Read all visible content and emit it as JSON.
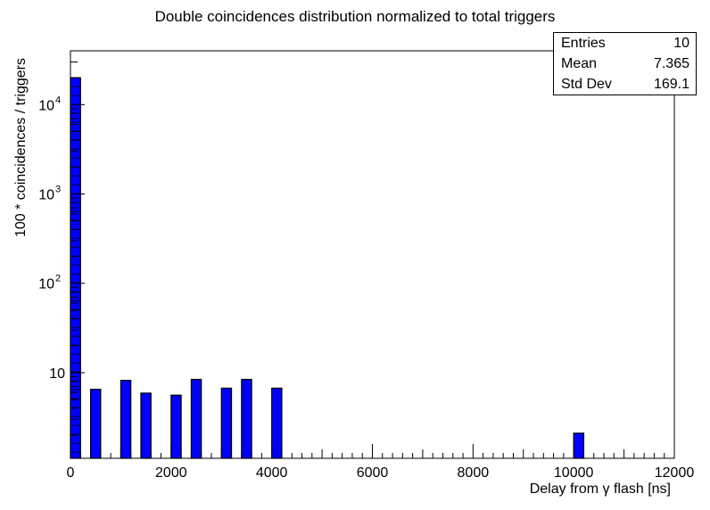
{
  "title": "Double coincidences distribution normalized to total triggers",
  "stats": {
    "rows": [
      {
        "label": "Entries",
        "value": "10"
      },
      {
        "label": "Mean",
        "value": "7.365"
      },
      {
        "label": "Std Dev",
        "value": "169.1"
      }
    ]
  },
  "colors": {
    "bar_fill": "#0000ff",
    "bar_edge": "#000000",
    "axis": "#000000"
  },
  "chart_data": {
    "type": "bar",
    "title": "Double coincidences distribution normalized to total triggers",
    "xlabel": "Delay from  γ flash [ns]",
    "ylabel": "100 * coincidences / triggers",
    "xlim": [
      0,
      12000
    ],
    "ylim": [
      1.1,
      40000
    ],
    "yscale": "log",
    "grid": false,
    "bin_width": 200,
    "x_ticks": [
      {
        "value": 0,
        "label": "0"
      },
      {
        "value": 2000,
        "label": "2000"
      },
      {
        "value": 4000,
        "label": "4000"
      },
      {
        "value": 6000,
        "label": "6000"
      },
      {
        "value": 8000,
        "label": "8000"
      },
      {
        "value": 10000,
        "label": "10000"
      },
      {
        "value": 12000,
        "label": "12000"
      }
    ],
    "y_ticks": [
      {
        "value": 10,
        "label": "10"
      },
      {
        "value": 100,
        "label": "10",
        "exp": "2"
      },
      {
        "value": 1000,
        "label": "10",
        "exp": "3"
      },
      {
        "value": 10000,
        "label": "10",
        "exp": "4"
      }
    ],
    "bins": [
      {
        "x": 100,
        "value": 20000
      },
      {
        "x": 500,
        "value": 6.5
      },
      {
        "x": 1100,
        "value": 8.2
      },
      {
        "x": 1500,
        "value": 5.9
      },
      {
        "x": 2100,
        "value": 5.6
      },
      {
        "x": 2500,
        "value": 8.4
      },
      {
        "x": 3100,
        "value": 6.7
      },
      {
        "x": 3500,
        "value": 8.4
      },
      {
        "x": 4100,
        "value": 6.7
      },
      {
        "x": 10100,
        "value": 2.1
      }
    ]
  }
}
